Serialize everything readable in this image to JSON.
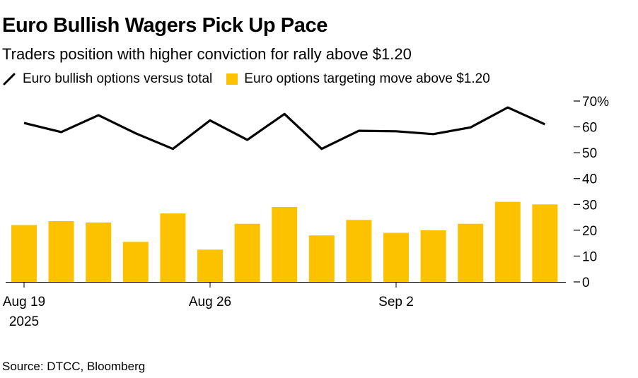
{
  "chart_data": {
    "type": "bar",
    "title": "Euro Bullish Wagers Pick Up Pace",
    "subtitle": "Traders position with higher conviction for rally above $1.20",
    "source": "Source: DTCC, Bloomberg",
    "ylim": [
      0,
      70
    ],
    "y_ticks": [
      "70%",
      "60",
      "50",
      "40",
      "30",
      "20",
      "10",
      "0"
    ],
    "y_axis_side": "right",
    "x_tick_labels": [
      {
        "label": "Aug 19",
        "sub": "2025",
        "index": 0
      },
      {
        "label": "Aug 26",
        "sub": "",
        "index": 5
      },
      {
        "label": "Sep 2",
        "sub": "",
        "index": 10
      }
    ],
    "grid": false,
    "legend_position": "top-left",
    "series": [
      {
        "name": "Euro bullish options versus total",
        "kind": "line",
        "color": "#000000",
        "values": [
          61.5,
          58,
          64.5,
          57.5,
          51.5,
          62.5,
          55,
          65,
          51.5,
          58.5,
          58.3,
          57.2,
          59.8,
          67.5,
          61
        ]
      },
      {
        "name": "Euro options targeting move above $1.20",
        "kind": "bar",
        "color": "#FCC200",
        "values": [
          22,
          23.5,
          23,
          15.5,
          26.5,
          12.5,
          22.5,
          29,
          18,
          24,
          19,
          20,
          22.5,
          31,
          30
        ]
      }
    ]
  }
}
